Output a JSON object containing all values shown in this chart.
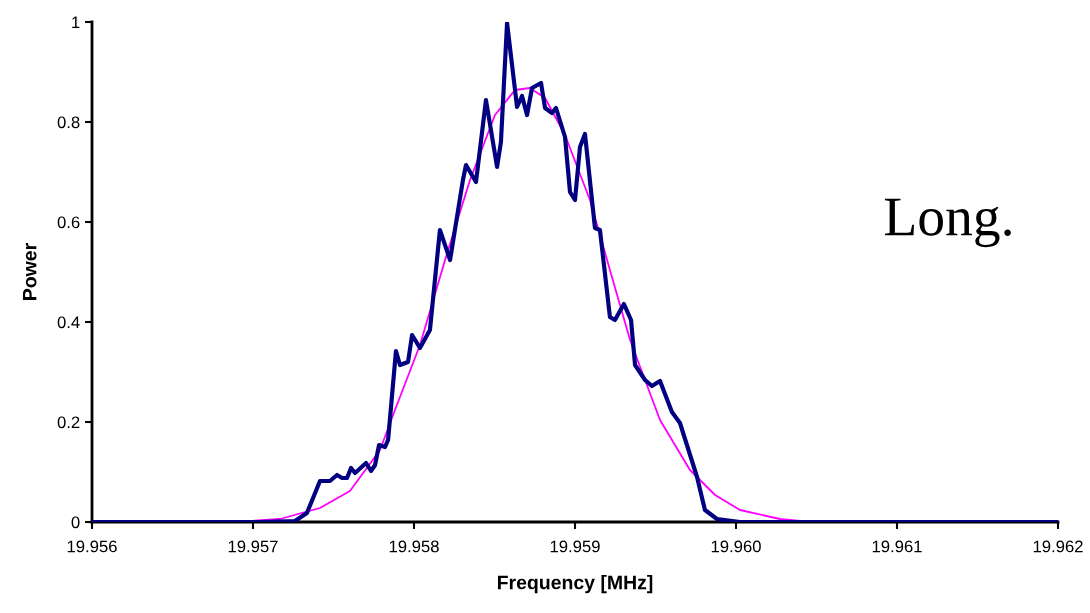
{
  "chart_data": {
    "type": "line",
    "xlabel": "Frequency [MHz]",
    "ylabel": "Power",
    "annotations": [
      "Long."
    ],
    "xlim": [
      19.956,
      19.962
    ],
    "xticks": [
      {
        "value": 19.956,
        "label": "19.956"
      },
      {
        "value": 19.957,
        "label": "19.957"
      },
      {
        "value": 19.958,
        "label": "19.958"
      },
      {
        "value": 19.959,
        "label": "19.959"
      },
      {
        "value": 19.96,
        "label": "19.960"
      },
      {
        "value": 19.961,
        "label": "19.961"
      },
      {
        "value": 19.962,
        "label": "19.962"
      }
    ],
    "ylim": [
      0,
      1
    ],
    "yticks": [
      0,
      0.2,
      0.4,
      0.6,
      0.8,
      1
    ],
    "grid": false,
    "marker": "none",
    "line_style": "solid",
    "series": [
      {
        "color": "#000080",
        "x": [
          19.956,
          19.957043,
          19.957261,
          19.957335,
          19.957416,
          19.957478,
          19.957522,
          19.957553,
          19.957584,
          19.957609,
          19.957634,
          19.957702,
          19.957733,
          19.957758,
          19.957783,
          19.95782,
          19.957839,
          19.957888,
          19.957913,
          19.957963,
          19.957988,
          19.958037,
          19.958099,
          19.958161,
          19.958224,
          19.958304,
          19.958323,
          19.958385,
          19.958447,
          19.958516,
          19.95854,
          19.958578,
          19.95864,
          19.958671,
          19.958702,
          19.958733,
          19.958789,
          19.958814,
          19.958857,
          19.958882,
          19.958938,
          19.958969,
          19.959,
          19.959031,
          19.959062,
          19.959124,
          19.959155,
          19.959217,
          19.959248,
          19.959304,
          19.959348,
          19.959373,
          19.959435,
          19.959478,
          19.959528,
          19.959602,
          19.959652,
          19.959758,
          19.959807,
          19.959882,
          19.960025,
          19.962
        ],
        "values": [
          0,
          0,
          0.002,
          0.018,
          0.082,
          0.082,
          0.094,
          0.088,
          0.088,
          0.108,
          0.098,
          0.118,
          0.102,
          0.114,
          0.154,
          0.15,
          0.164,
          0.342,
          0.314,
          0.32,
          0.374,
          0.348,
          0.384,
          0.584,
          0.524,
          0.684,
          0.714,
          0.68,
          0.844,
          0.71,
          0.76,
          0.998,
          0.83,
          0.852,
          0.814,
          0.868,
          0.878,
          0.828,
          0.818,
          0.828,
          0.77,
          0.66,
          0.644,
          0.75,
          0.776,
          0.588,
          0.584,
          0.41,
          0.404,
          0.436,
          0.404,
          0.314,
          0.284,
          0.272,
          0.282,
          0.22,
          0.198,
          0.09,
          0.024,
          0.006,
          0,
          0
        ]
      },
      {
        "color": "#ff00ff",
        "x": [
          19.956,
          19.956888,
          19.957168,
          19.957416,
          19.957602,
          19.957789,
          19.957882,
          19.958037,
          19.958193,
          19.958348,
          19.958503,
          19.958627,
          19.95872,
          19.958814,
          19.958938,
          19.959093,
          19.959217,
          19.959342,
          19.959528,
          19.959714,
          19.95987,
          19.960025,
          19.960273,
          19.96046,
          19.962
        ],
        "values": [
          0,
          0,
          0.006,
          0.028,
          0.062,
          0.144,
          0.224,
          0.354,
          0.524,
          0.684,
          0.814,
          0.864,
          0.868,
          0.848,
          0.774,
          0.644,
          0.504,
          0.364,
          0.204,
          0.104,
          0.054,
          0.024,
          0.006,
          0,
          0
        ]
      }
    ]
  }
}
